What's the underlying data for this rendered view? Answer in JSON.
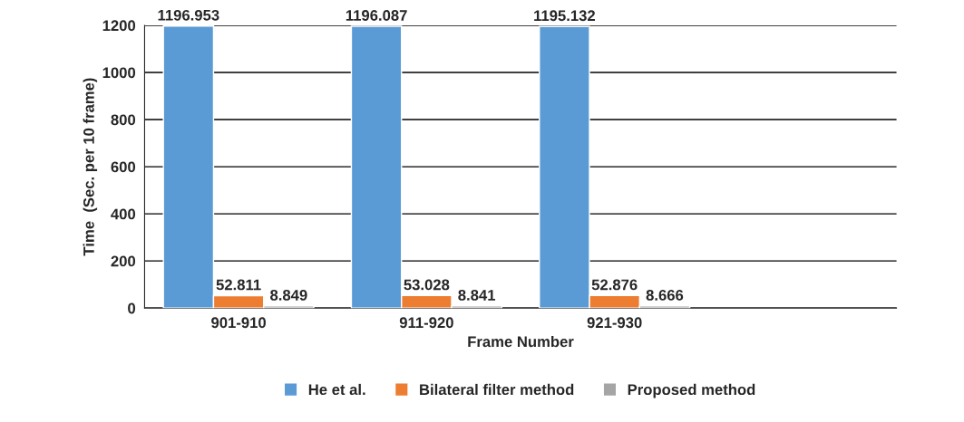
{
  "chart_data": {
    "type": "bar",
    "xlabel": "Frame Number",
    "ylabel": "Time  (Sec. per 10 frame)",
    "categories": [
      "901-910",
      "911-920",
      "921-930"
    ],
    "series": [
      {
        "name": "He et al.",
        "color": "#5b9bd5",
        "values": [
          1196.953,
          1196.087,
          1195.132
        ]
      },
      {
        "name": "Bilateral filter method",
        "color": "#ed7d31",
        "values": [
          52.811,
          53.028,
          52.876
        ]
      },
      {
        "name": "Proposed method",
        "color": "#a5a5a5",
        "values": [
          8.849,
          8.841,
          8.666
        ]
      }
    ],
    "ylim": [
      0,
      1200
    ],
    "yticks": [
      0,
      200,
      400,
      600,
      800,
      1000,
      1200
    ],
    "grid": "y",
    "legend": "bottom",
    "data_labels": true
  }
}
